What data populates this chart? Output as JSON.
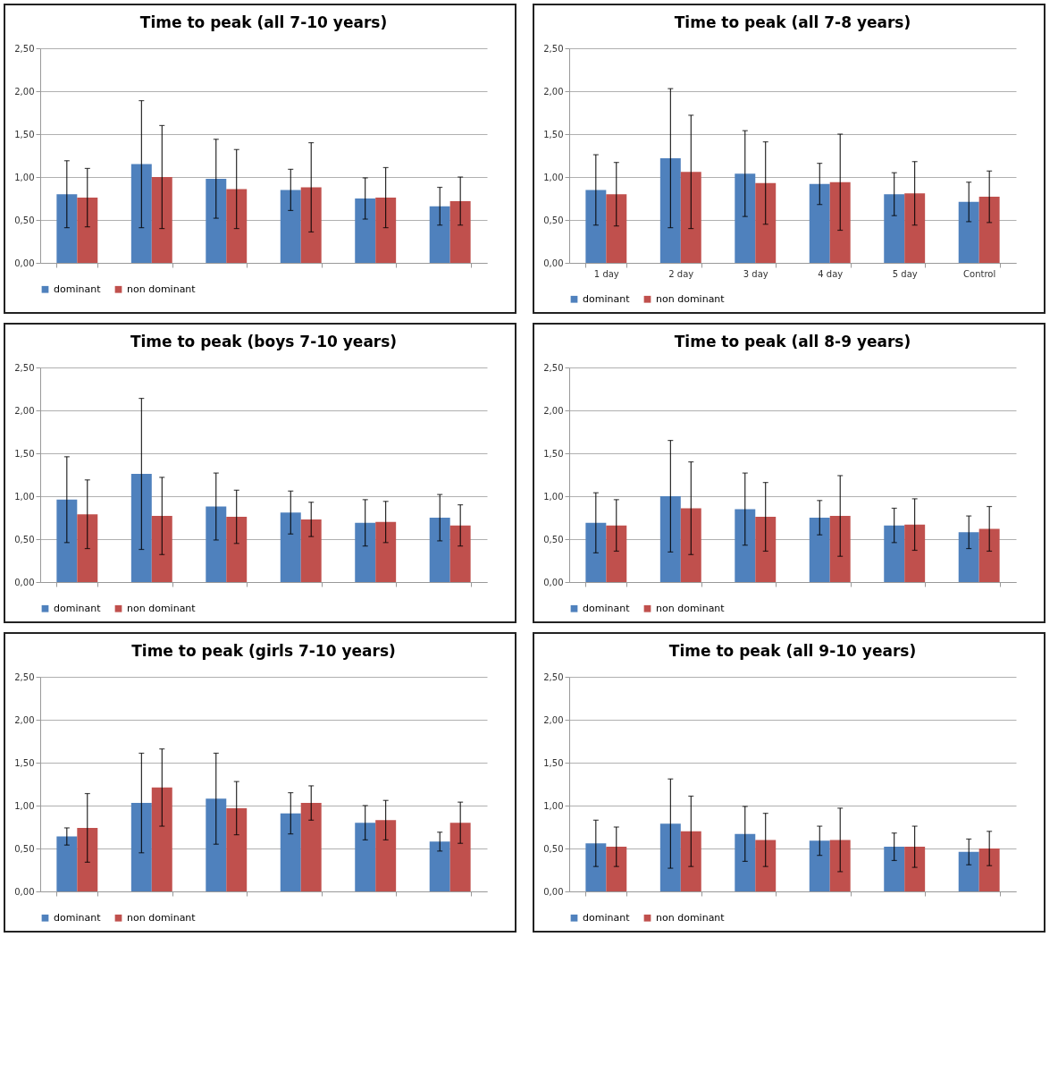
{
  "chart_data": [
    {
      "type": "bar",
      "title": "Time to peak (all 7-10 years)",
      "categories": [
        null,
        null,
        null,
        null,
        null,
        null
      ],
      "tick_labels": "y",
      "grid": "y",
      "legend": "bottom",
      "ylim": [
        0,
        2.5
      ],
      "yticks": [
        {
          "value": 0,
          "label": "0,00"
        },
        {
          "value": 0.5,
          "label": "0,50"
        },
        {
          "value": 1,
          "label": "1,00"
        },
        {
          "value": 1.5,
          "label": "1,50"
        },
        {
          "value": 2,
          "label": "2,00"
        },
        {
          "value": 2.5,
          "label": "2,50"
        }
      ],
      "series": [
        {
          "name": "dominant",
          "color": "#4f81bd",
          "values": [
            0.8,
            1.15,
            0.98,
            0.85,
            0.75,
            0.66
          ],
          "errors": [
            0.39,
            0.74,
            0.46,
            0.24,
            0.24,
            0.22
          ]
        },
        {
          "name": "non dominant",
          "color": "#c0504d",
          "values": [
            0.76,
            1.0,
            0.86,
            0.88,
            0.76,
            0.72
          ],
          "errors": [
            0.34,
            0.6,
            0.46,
            0.52,
            0.35,
            0.28
          ]
        }
      ]
    },
    {
      "type": "bar",
      "title": "Time to peak (all 7-8 years)",
      "categories": [
        "1 day",
        "2 day",
        "3 day",
        "4 day",
        "5 day",
        "Control"
      ],
      "grid": "y",
      "legend": "bottom",
      "ylim": [
        0,
        2.5
      ],
      "yticks": [
        {
          "value": 0,
          "label": "0,00"
        },
        {
          "value": 0.5,
          "label": "0,50"
        },
        {
          "value": 1,
          "label": "1,00"
        },
        {
          "value": 1.5,
          "label": "1,50"
        },
        {
          "value": 2,
          "label": "2,00"
        },
        {
          "value": 2.5,
          "label": "2,50"
        }
      ],
      "series": [
        {
          "name": "dominant",
          "color": "#4f81bd",
          "values": [
            0.85,
            1.22,
            1.04,
            0.92,
            0.8,
            0.71
          ],
          "errors": [
            0.41,
            0.81,
            0.5,
            0.24,
            0.25,
            0.23
          ]
        },
        {
          "name": "non dominant",
          "color": "#c0504d",
          "values": [
            0.8,
            1.06,
            0.93,
            0.94,
            0.81,
            0.77
          ],
          "errors": [
            0.37,
            0.66,
            0.48,
            0.56,
            0.37,
            0.3
          ]
        }
      ]
    },
    {
      "type": "bar",
      "title": "Time to peak (boys 7-10 years)",
      "categories": [
        null,
        null,
        null,
        null,
        null,
        null
      ],
      "tick_labels": "y",
      "grid": "y",
      "legend": "bottom",
      "ylim": [
        0,
        2.5
      ],
      "yticks": [
        {
          "value": 0,
          "label": "0,00"
        },
        {
          "value": 0.5,
          "label": "0,50"
        },
        {
          "value": 1,
          "label": "1,00"
        },
        {
          "value": 1.5,
          "label": "1,50"
        },
        {
          "value": 2,
          "label": "2,00"
        },
        {
          "value": 2.5,
          "label": "2,50"
        }
      ],
      "series": [
        {
          "name": "dominant",
          "color": "#4f81bd",
          "values": [
            0.96,
            1.26,
            0.88,
            0.81,
            0.69,
            0.75
          ],
          "errors": [
            0.5,
            0.88,
            0.39,
            0.25,
            0.27,
            0.27
          ]
        },
        {
          "name": "non dominant",
          "color": "#c0504d",
          "values": [
            0.79,
            0.77,
            0.76,
            0.73,
            0.7,
            0.66
          ],
          "errors": [
            0.4,
            0.45,
            0.31,
            0.2,
            0.24,
            0.24
          ]
        }
      ]
    },
    {
      "type": "bar",
      "title": "Time to peak (all 8-9 years)",
      "categories": [
        null,
        null,
        null,
        null,
        null,
        null
      ],
      "tick_labels": "y",
      "grid": "y",
      "legend": "bottom",
      "ylim": [
        0,
        2.5
      ],
      "yticks": [
        {
          "value": 0,
          "label": "0,00"
        },
        {
          "value": 0.5,
          "label": "0,50"
        },
        {
          "value": 1,
          "label": "1,00"
        },
        {
          "value": 1.5,
          "label": "1,50"
        },
        {
          "value": 2,
          "label": "2,00"
        },
        {
          "value": 2.5,
          "label": "2,50"
        }
      ],
      "series": [
        {
          "name": "dominant",
          "color": "#4f81bd",
          "values": [
            0.69,
            1.0,
            0.85,
            0.75,
            0.66,
            0.58
          ],
          "errors": [
            0.35,
            0.65,
            0.42,
            0.2,
            0.2,
            0.19
          ]
        },
        {
          "name": "non dominant",
          "color": "#c0504d",
          "values": [
            0.66,
            0.86,
            0.76,
            0.77,
            0.67,
            0.62
          ],
          "errors": [
            0.3,
            0.54,
            0.4,
            0.47,
            0.3,
            0.26
          ]
        }
      ]
    },
    {
      "type": "bar",
      "title": "Time to peak (girls 7-10 years)",
      "categories": [
        null,
        null,
        null,
        null,
        null,
        null
      ],
      "tick_labels": "y",
      "grid": "y",
      "legend": "bottom",
      "ylim": [
        0,
        2.5
      ],
      "yticks": [
        {
          "value": 0,
          "label": "0,00"
        },
        {
          "value": 0.5,
          "label": "0,50"
        },
        {
          "value": 1,
          "label": "1,00"
        },
        {
          "value": 1.5,
          "label": "1,50"
        },
        {
          "value": 2,
          "label": "2,00"
        },
        {
          "value": 2.5,
          "label": "2,50"
        }
      ],
      "series": [
        {
          "name": "dominant",
          "color": "#4f81bd",
          "values": [
            0.64,
            1.03,
            1.08,
            0.91,
            0.8,
            0.58
          ],
          "errors": [
            0.1,
            0.58,
            0.53,
            0.24,
            0.2,
            0.11
          ]
        },
        {
          "name": "non dominant",
          "color": "#c0504d",
          "values": [
            0.74,
            1.21,
            0.97,
            1.03,
            0.83,
            0.8
          ],
          "errors": [
            0.4,
            0.45,
            0.31,
            0.2,
            0.23,
            0.24
          ]
        }
      ]
    },
    {
      "type": "bar",
      "title": "Time to peak (all 9-10 years)",
      "categories": [
        null,
        null,
        null,
        null,
        null,
        null
      ],
      "tick_labels": "y",
      "grid": "y",
      "legend": "bottom",
      "ylim": [
        0,
        2.5
      ],
      "yticks": [
        {
          "value": 0,
          "label": "0,00"
        },
        {
          "value": 0.5,
          "label": "0,50"
        },
        {
          "value": 1,
          "label": "1,00"
        },
        {
          "value": 1.5,
          "label": "1,50"
        },
        {
          "value": 2,
          "label": "2,00"
        },
        {
          "value": 2.5,
          "label": "2,50"
        }
      ],
      "series": [
        {
          "name": "dominant",
          "color": "#4f81bd",
          "values": [
            0.56,
            0.79,
            0.67,
            0.59,
            0.52,
            0.46
          ],
          "errors": [
            0.27,
            0.52,
            0.32,
            0.17,
            0.16,
            0.15
          ]
        },
        {
          "name": "non dominant",
          "color": "#c0504d",
          "values": [
            0.52,
            0.7,
            0.6,
            0.6,
            0.52,
            0.5
          ],
          "errors": [
            0.23,
            0.41,
            0.31,
            0.37,
            0.24,
            0.2
          ]
        }
      ]
    }
  ]
}
